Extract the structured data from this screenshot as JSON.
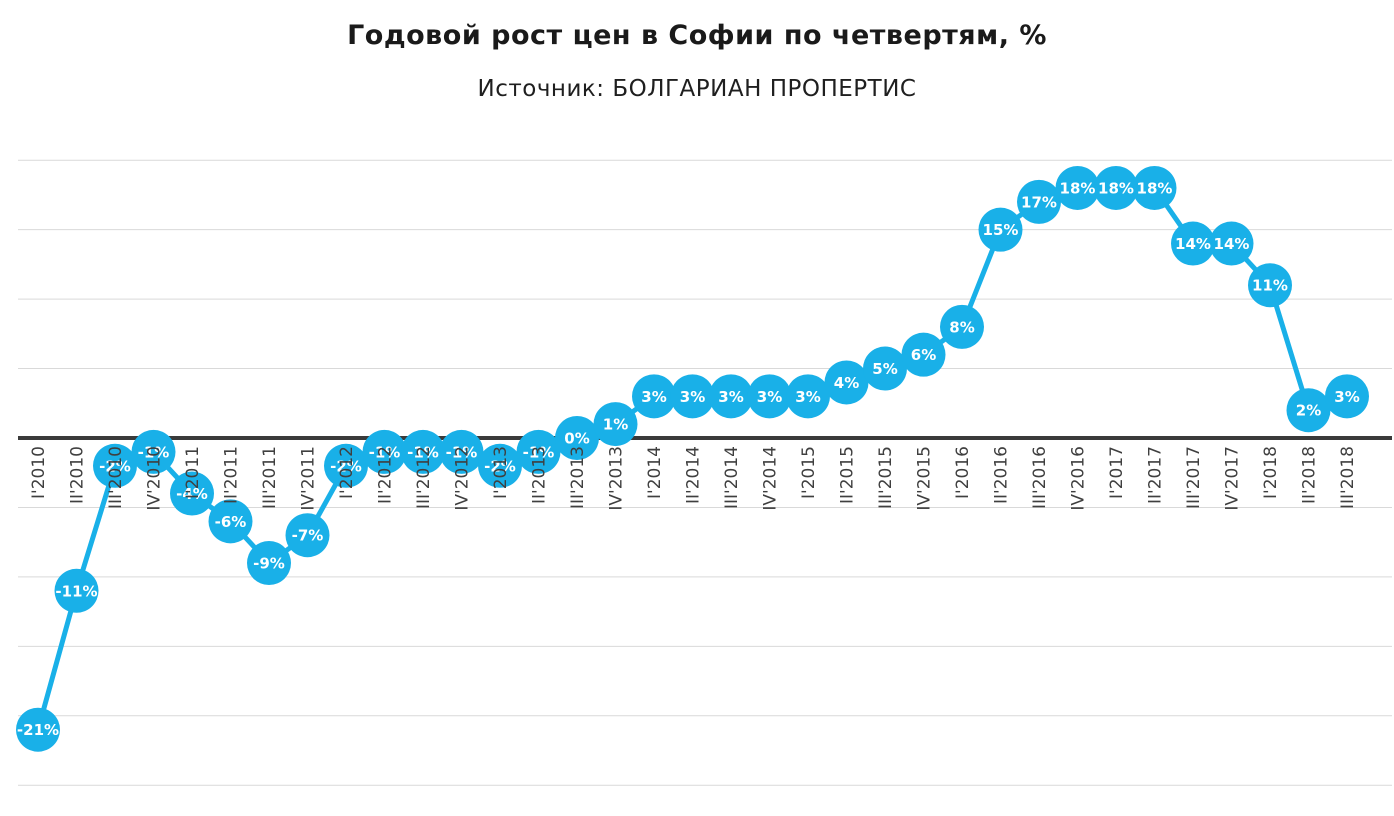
{
  "page": {
    "background": "#FFFFFF"
  },
  "chart_data": {
    "type": "line",
    "title": "Годовой рост цен в Софии по четвертям, %",
    "subtitle": "Источник: БОЛГАРИАН ПРОПЕРТИС",
    "unit": "%",
    "categories": [
      "I'2010",
      "II'2010",
      "III'2010",
      "IV'2010",
      "I'2011",
      "II'2011",
      "III'2011",
      "IV'2011",
      "I'2012",
      "II'2012",
      "III'2012",
      "IV'2012",
      "I'2013",
      "II'2013",
      "III'2013",
      "IV'2013",
      "I'2014",
      "II'2014",
      "III'2014",
      "IV'2014",
      "I'2015",
      "II'2015",
      "III'2015",
      "IV'2015",
      "I'2016",
      "II'2016",
      "III'2016",
      "IV'2016",
      "I'2017",
      "II'2017",
      "III'2017",
      "IV'2017",
      "I'2018",
      "II'2018",
      "III'2018"
    ],
    "values": [
      -21,
      -11,
      -2,
      -1,
      -4,
      -6,
      -9,
      -7,
      -2,
      -1,
      -1,
      -1,
      -2,
      -1,
      0,
      1,
      3,
      3,
      3,
      3,
      3,
      4,
      5,
      6,
      8,
      15,
      17,
      18,
      18,
      18,
      14,
      14,
      11,
      2,
      3
    ],
    "data_labels": [
      "-21%",
      "-11%",
      "-2%",
      "-1%",
      "-4%",
      "-6%",
      "-9%",
      "-7%",
      "-2%",
      "-1%",
      "-1%",
      "-1%",
      "-2%",
      "-1%",
      "0%",
      "1%",
      "3%",
      "3%",
      "3%",
      "3%",
      "3%",
      "4%",
      "5%",
      "6%",
      "8%",
      "15%",
      "17%",
      "18%",
      "18%",
      "18%",
      "14%",
      "14%",
      "11%",
      "2%",
      "3%"
    ],
    "ylim": [
      -25,
      20
    ],
    "grid_step": 5,
    "grid": "horizontal-only",
    "legend": "none",
    "xlabel": "",
    "ylabel": "",
    "colors": {
      "marker": "#19B0E8",
      "line": "#19B0E8",
      "marker_label": "#FFFFFF",
      "gridline": "#D9D9D9",
      "zero_axis": "#3A3A3A",
      "tick_label": "#3F3F3F",
      "title": "#1A1A1A"
    }
  }
}
